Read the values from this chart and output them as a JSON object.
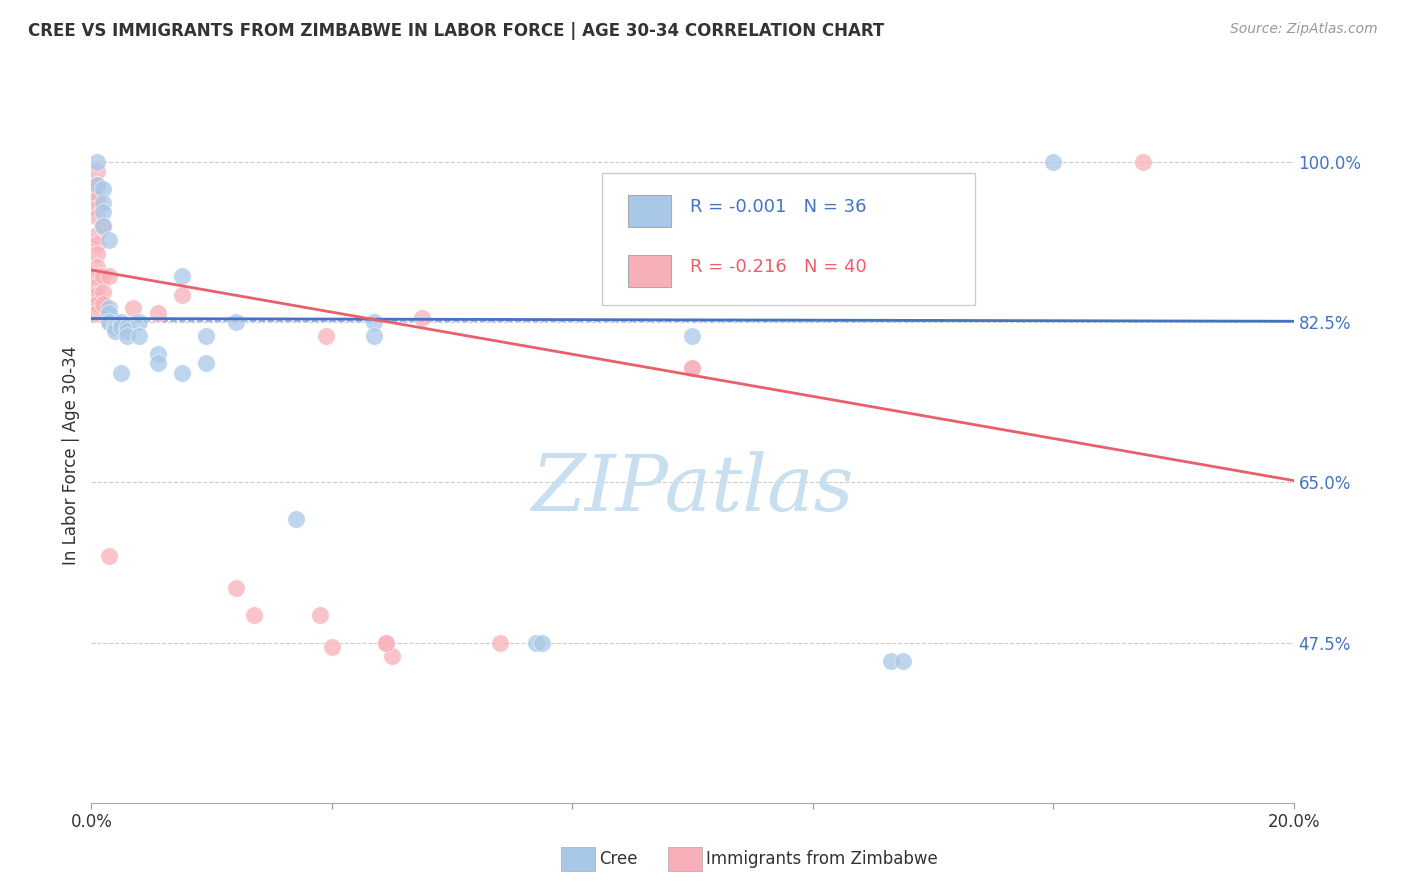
{
  "title": "CREE VS IMMIGRANTS FROM ZIMBABWE IN LABOR FORCE | AGE 30-34 CORRELATION CHART",
  "source": "Source: ZipAtlas.com",
  "ylabel": "In Labor Force | Age 30-34",
  "xlim": [
    0.0,
    0.2
  ],
  "ylim": [
    0.3,
    1.06
  ],
  "yticks": [
    0.475,
    0.65,
    0.825,
    1.0
  ],
  "ytick_labels": [
    "47.5%",
    "65.0%",
    "82.5%",
    "100.0%"
  ],
  "xticks": [
    0.0,
    0.04,
    0.08,
    0.12,
    0.16,
    0.2
  ],
  "xtick_labels": [
    "0.0%",
    "",
    "",
    "",
    "",
    "20.0%"
  ],
  "cree_color": "#a8c8e8",
  "zimb_color": "#f8b0b8",
  "cree_line_color": "#4472c4",
  "zimb_line_color": "#e8606a",
  "cree_dash_color": "#4472c4",
  "watermark_color": "#c8dff0",
  "grid_color": "#cccccc",
  "R_cree": -0.001,
  "N_cree": 36,
  "R_zimb": -0.216,
  "N_zimb": 40,
  "watermark": "ZIPatlas",
  "cree_line_y0": 0.829,
  "cree_line_y1": 0.826,
  "zimb_line_y0": 0.882,
  "zimb_line_y1": 0.652,
  "dashed_line_y": 0.826,
  "cree_points": [
    [
      0.001,
      1.0
    ],
    [
      0.001,
      0.975
    ],
    [
      0.002,
      0.97
    ],
    [
      0.002,
      0.955
    ],
    [
      0.002,
      0.945
    ],
    [
      0.002,
      0.93
    ],
    [
      0.003,
      0.915
    ],
    [
      0.003,
      0.84
    ],
    [
      0.003,
      0.835
    ],
    [
      0.003,
      0.825
    ],
    [
      0.004,
      0.82
    ],
    [
      0.004,
      0.815
    ],
    [
      0.005,
      0.825
    ],
    [
      0.005,
      0.82
    ],
    [
      0.005,
      0.77
    ],
    [
      0.006,
      0.82
    ],
    [
      0.006,
      0.815
    ],
    [
      0.006,
      0.81
    ],
    [
      0.008,
      0.825
    ],
    [
      0.008,
      0.81
    ],
    [
      0.011,
      0.79
    ],
    [
      0.011,
      0.78
    ],
    [
      0.015,
      0.875
    ],
    [
      0.015,
      0.77
    ],
    [
      0.019,
      0.81
    ],
    [
      0.019,
      0.78
    ],
    [
      0.024,
      0.825
    ],
    [
      0.034,
      0.61
    ],
    [
      0.047,
      0.825
    ],
    [
      0.047,
      0.81
    ],
    [
      0.074,
      0.475
    ],
    [
      0.1,
      0.81
    ],
    [
      0.133,
      0.455
    ],
    [
      0.16,
      1.0
    ],
    [
      0.075,
      0.475
    ],
    [
      0.135,
      0.455
    ]
  ],
  "zimb_points": [
    [
      0.001,
      0.99
    ],
    [
      0.001,
      0.975
    ],
    [
      0.001,
      0.965
    ],
    [
      0.001,
      0.96
    ],
    [
      0.001,
      0.95
    ],
    [
      0.001,
      0.94
    ],
    [
      0.001,
      0.92
    ],
    [
      0.001,
      0.91
    ],
    [
      0.001,
      0.9
    ],
    [
      0.001,
      0.885
    ],
    [
      0.001,
      0.875
    ],
    [
      0.001,
      0.865
    ],
    [
      0.001,
      0.855
    ],
    [
      0.001,
      0.845
    ],
    [
      0.001,
      0.835
    ],
    [
      0.002,
      0.93
    ],
    [
      0.002,
      0.875
    ],
    [
      0.002,
      0.858
    ],
    [
      0.002,
      0.845
    ],
    [
      0.003,
      0.875
    ],
    [
      0.003,
      0.825
    ],
    [
      0.004,
      0.825
    ],
    [
      0.004,
      0.82
    ],
    [
      0.007,
      0.84
    ],
    [
      0.011,
      0.835
    ],
    [
      0.015,
      0.855
    ],
    [
      0.024,
      0.535
    ],
    [
      0.027,
      0.505
    ],
    [
      0.039,
      0.81
    ],
    [
      0.049,
      0.475
    ],
    [
      0.055,
      0.83
    ],
    [
      0.068,
      0.475
    ],
    [
      0.1,
      0.775
    ],
    [
      0.175,
      1.0
    ],
    [
      0.003,
      0.57
    ],
    [
      0.05,
      0.46
    ],
    [
      0.049,
      0.475
    ],
    [
      0.04,
      0.47
    ],
    [
      0.038,
      0.505
    ],
    [
      0.1,
      0.775
    ]
  ]
}
